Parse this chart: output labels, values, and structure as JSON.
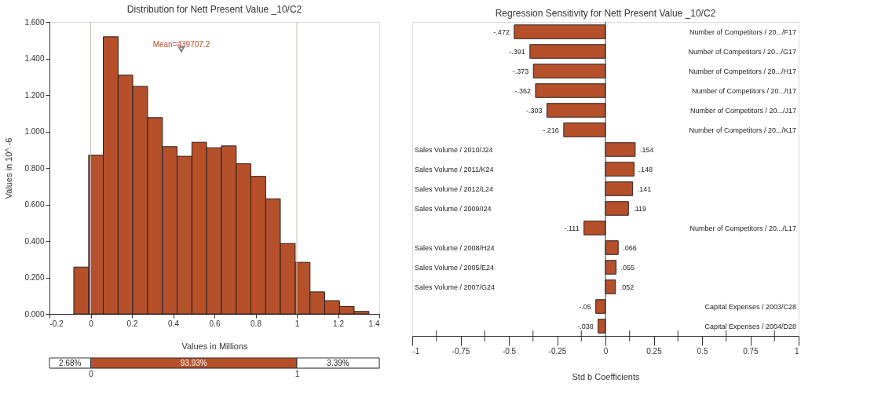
{
  "chart_data": [
    {
      "type": "histogram",
      "title": "Distribution for Nett Present Value _10/C2",
      "xlabel": "Values in Millions",
      "ylabel": "Values in 10^ -6",
      "bins": [
        -0.082,
        -0.01,
        0.061,
        0.133,
        0.204,
        0.276,
        0.348,
        0.419,
        0.491,
        0.562,
        0.634,
        0.706,
        0.777,
        0.849,
        0.92,
        0.992,
        1.064,
        1.135,
        1.207,
        1.278,
        1.35
      ],
      "values": [
        0.257,
        0.87,
        1.519,
        1.309,
        1.247,
        1.076,
        0.917,
        0.864,
        0.941,
        0.911,
        0.921,
        0.823,
        0.754,
        0.631,
        0.386,
        0.283,
        0.121,
        0.073,
        0.041,
        0.014
      ],
      "color": "#b5502a",
      "xlim": [
        -0.2,
        1.4
      ],
      "xticks": [
        -0.2,
        0,
        0.2,
        0.4,
        0.6,
        0.8,
        1,
        1.2,
        1.4
      ],
      "ylim": [
        0,
        1.6
      ],
      "yticks": [
        {
          "value": 0,
          "label": "0.000"
        },
        {
          "value": 0.2,
          "label": "0.200"
        },
        {
          "value": 0.4,
          "label": "0.400"
        },
        {
          "value": 0.6,
          "label": "0.600"
        },
        {
          "value": 0.8,
          "label": "0.800"
        },
        {
          "value": 1.0,
          "label": "1.000"
        },
        {
          "value": 1.2,
          "label": "1.200"
        },
        {
          "value": 1.4,
          "label": "1.400"
        },
        {
          "value": 1.6,
          "label": "1.600"
        }
      ],
      "grid": false,
      "ref_lines": [
        {
          "axis": "x",
          "value": 0,
          "color": "#c8beb4"
        },
        {
          "axis": "x",
          "value": 1,
          "color": "#c8beb4"
        }
      ],
      "annotations": [
        {
          "text": "Mean=439707.2",
          "x": 0.4397,
          "y": 1.45
        },
        "2.68%",
        "93.93%",
        "3.39%",
        "0",
        "1"
      ]
    },
    {
      "type": "bar",
      "orientation": "horizontal",
      "title": "Regression Sensitivity for Nett Present Value _10/C2",
      "xlabel": "Std b Coefficients",
      "categories": [
        "Number of Competitors / 20.../F17",
        "Number of Competitors / 20.../G17",
        "Number of Competitors / 20.../H17",
        "Number of Competitors / 20.../I17",
        "Number of Competitors / 20.../J17",
        "Number of Competitors / 20.../K17",
        "Sales Volume / 2010/J24",
        "Sales Volume / 2011/K24",
        "Sales Volume / 2012/L24",
        "Sales Volume / 2009/I24",
        "Number of Competitors / 20.../L17",
        "Sales Volume / 2008/H24",
        "Sales Volume / 2005/E24",
        "Sales Volume / 2007/G24",
        "Capital Expenses / 2003/C28",
        "Capital Expenses / 2004/D28"
      ],
      "values": [
        -0.472,
        -0.391,
        -0.373,
        -0.362,
        -0.303,
        -0.216,
        0.154,
        0.148,
        0.141,
        0.119,
        -0.111,
        0.066,
        0.055,
        0.052,
        -0.05,
        -0.038
      ],
      "value_labels": [
        "-.472",
        "-.391",
        "-.373",
        "-.362",
        "-.303",
        "-.216",
        ".154",
        ".148",
        ".141",
        ".119",
        "-.111",
        ".066",
        ".055",
        ".052",
        "-.05",
        "-.038"
      ],
      "color": "#b5502a",
      "xlim": [
        -1,
        1
      ],
      "xticks": [
        -1,
        {
          "value": -0.875,
          "label": null
        },
        -0.75,
        {
          "value": -0.625,
          "label": null
        },
        -0.5,
        {
          "value": -0.375,
          "label": null
        },
        -0.25,
        {
          "value": -0.125,
          "label": null
        },
        0,
        {
          "value": 0.125,
          "label": null
        },
        0.25,
        {
          "value": 0.375,
          "label": null
        },
        0.5,
        {
          "value": 0.625,
          "label": null
        },
        0.75,
        {
          "value": 0.875,
          "label": null
        },
        1
      ],
      "grid": false,
      "ref_lines": [
        {
          "axis": "x",
          "value": 0,
          "color": "#333333"
        }
      ]
    }
  ]
}
